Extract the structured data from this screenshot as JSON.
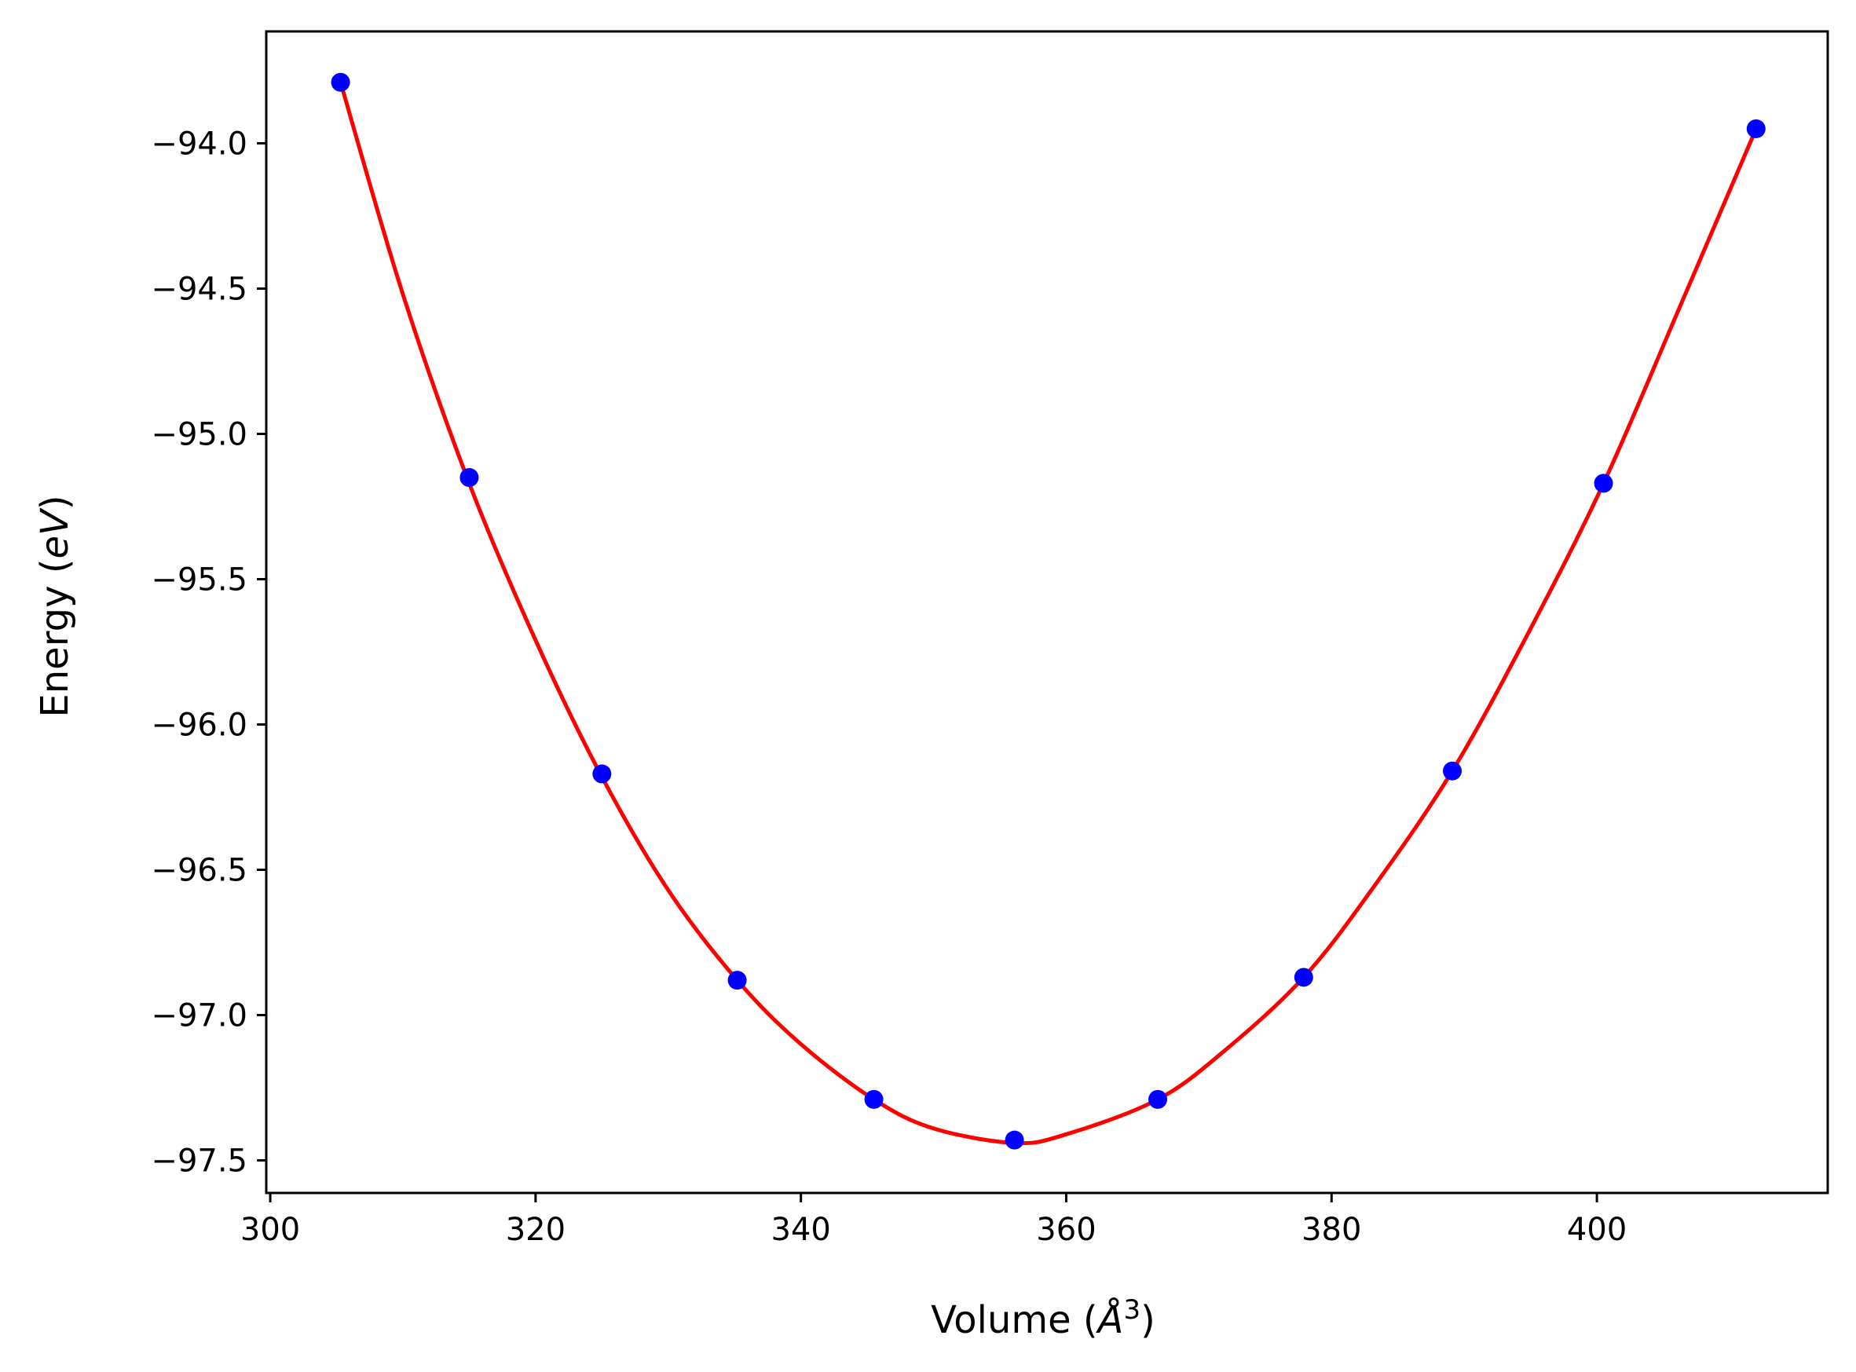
{
  "chart_data": {
    "type": "scatter",
    "title": "",
    "xlabel": "Volume (",
    "xlabel_symbol": "Å",
    "xlabel_sup": "3",
    "xlabel_close": ")",
    "ylabel": "Energy (",
    "ylabel_unit": "eV",
    "ylabel_close": ")",
    "xlim": [
      299.7,
      417.4
    ],
    "ylim": [
      -97.612,
      -93.615
    ],
    "xticks": [
      300,
      320,
      340,
      360,
      380,
      400
    ],
    "xtick_labels": [
      "300",
      "320",
      "340",
      "360",
      "380",
      "400"
    ],
    "yticks": [
      -94.0,
      -94.5,
      -95.0,
      -95.5,
      -96.0,
      -96.5,
      -97.0,
      -97.5
    ],
    "ytick_labels": [
      "−94.0",
      "−94.5",
      "−95.0",
      "−95.5",
      "−96.0",
      "−96.5",
      "−97.0",
      "−97.5"
    ],
    "grid": false,
    "series": [
      {
        "kind": "points",
        "color": "#0000ff",
        "x": [
          305.3,
          315.0,
          325.0,
          335.2,
          345.5,
          356.1,
          366.9,
          377.9,
          389.1,
          400.5,
          412.0
        ],
        "y": [
          -93.79,
          -95.15,
          -96.17,
          -96.88,
          -97.29,
          -97.43,
          -97.29,
          -96.87,
          -96.16,
          -95.17,
          -93.95
        ]
      },
      {
        "kind": "fit-line",
        "color": "#ff0000",
        "x": [
          305.3,
          310.0,
          315.0,
          320.0,
          325.0,
          330.0,
          335.2,
          340.0,
          345.5,
          350.0,
          356.1,
          360.0,
          366.9,
          372.0,
          377.9,
          383.0,
          389.1,
          395.0,
          400.5,
          406.0,
          412.0
        ],
        "y": [
          -93.79,
          -94.52,
          -95.17,
          -95.71,
          -96.18,
          -96.57,
          -96.88,
          -97.1,
          -97.29,
          -97.39,
          -97.44,
          -97.41,
          -97.29,
          -97.12,
          -96.87,
          -96.57,
          -96.16,
          -95.67,
          -95.17,
          -94.59,
          -93.95
        ]
      }
    ]
  }
}
